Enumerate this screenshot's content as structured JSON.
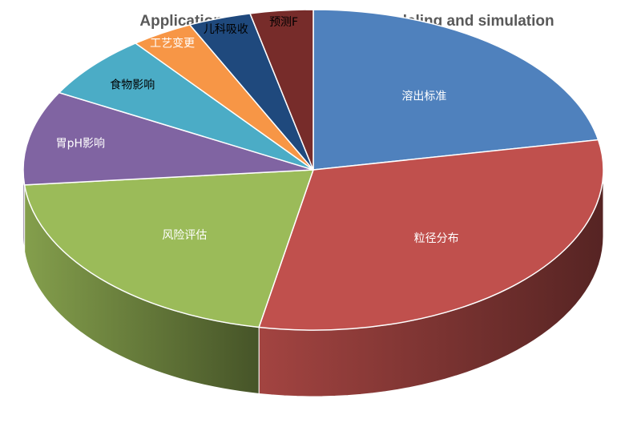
{
  "chart_data": {
    "type": "pie",
    "title": "Application of PBPK absorption modeling and simulation",
    "three_d": true,
    "slices": [
      {
        "label": "溶出标准",
        "value": 22,
        "color": "#4F81BD",
        "label_color": "#ffffff"
      },
      {
        "label": "粒径分布",
        "value": 31,
        "color": "#C0504D",
        "label_color": "#ffffff"
      },
      {
        "label": "风险评估",
        "value": 20.5,
        "color": "#9BBB59",
        "label_color": "#ffffff"
      },
      {
        "label": "胃pH影响",
        "value": 9.5,
        "color": "#8064A2",
        "label_color": "#ffffff"
      },
      {
        "label": "食物影响",
        "value": 6.5,
        "color": "#4BACC6",
        "label_color": "#000000"
      },
      {
        "label": "工艺变更",
        "value": 3.5,
        "color": "#F79646",
        "label_color": "#ffffff"
      },
      {
        "label": "儿科吸收",
        "value": 3.5,
        "color": "#1F497D",
        "label_color": "#000000"
      },
      {
        "label": "预测F",
        "value": 3.5,
        "color": "#772C2A",
        "label_color": "#000000"
      }
    ]
  }
}
